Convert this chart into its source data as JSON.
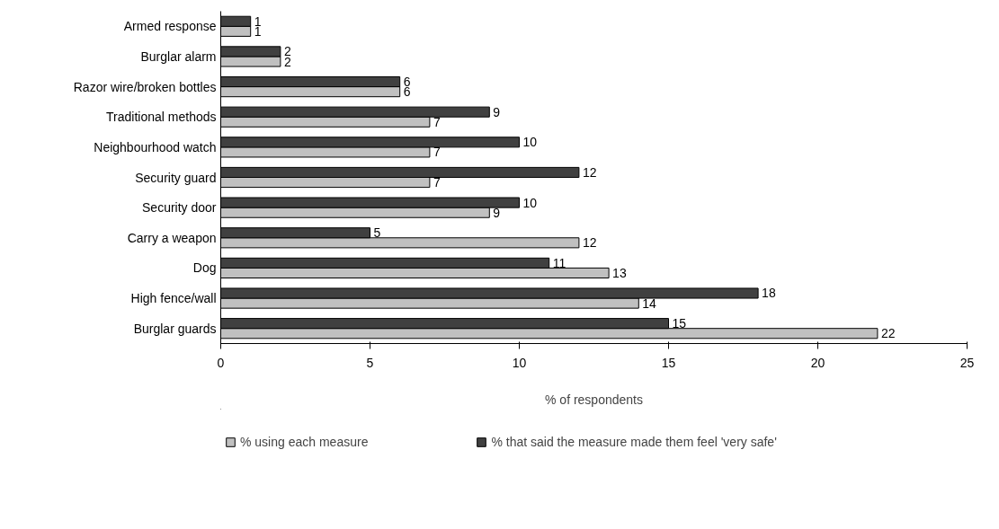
{
  "chart_data": {
    "type": "bar",
    "orientation": "horizontal",
    "xlabel": "% of respondents",
    "categories": [
      "Armed response",
      "Burglar alarm",
      "Razor wire/broken bottles",
      "Traditional methods",
      "Neighbourhood watch",
      "Security guard",
      "Security door",
      "Carry a weapon",
      "Dog",
      "High fence/wall",
      "Burglar guards"
    ],
    "series": [
      {
        "name": "% using each measure",
        "color": "#c0c0c0",
        "values": [
          1,
          2,
          6,
          7,
          7,
          7,
          9,
          12,
          13,
          14,
          22
        ]
      },
      {
        "name": "% that said the measure made them feel 'very safe'",
        "color": "#404040",
        "values": [
          1,
          2,
          6,
          9,
          10,
          12,
          10,
          5,
          11,
          18,
          15
        ]
      }
    ],
    "xlim": [
      0,
      25
    ],
    "xticks": [
      0,
      5,
      10,
      15,
      20,
      25
    ],
    "data_labels": true,
    "legend": "bottom"
  }
}
